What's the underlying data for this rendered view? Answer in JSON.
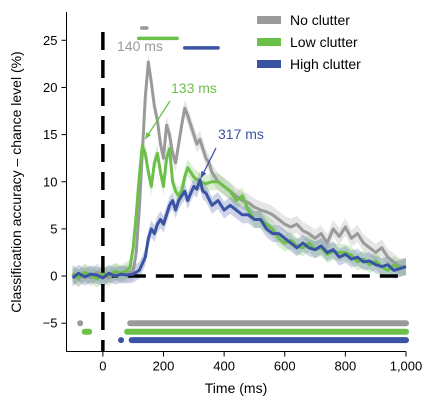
{
  "chart_data": {
    "type": "line",
    "xlabel": "Time (ms)",
    "ylabel": "Classification accuracy – chance level (%)",
    "xlim": [
      -120,
      1000
    ],
    "ylim": [
      -8,
      28
    ],
    "x_ticks": [
      0,
      200,
      400,
      600,
      800,
      1000
    ],
    "x_tick_labels": [
      "0",
      "200",
      "400",
      "600",
      "800",
      "1,000"
    ],
    "y_ticks": [
      -5,
      0,
      5,
      10,
      15,
      20,
      25
    ],
    "y_tick_labels": [
      "−5",
      "0",
      "5",
      "10",
      "15",
      "20",
      "25"
    ],
    "legend_position": "top-right",
    "colors": {
      "no_clutter": "#9a9a9a",
      "low_clutter": "#6cc04a",
      "high_clutter": "#3a53a4"
    },
    "series": [
      {
        "name": "No clutter",
        "key": "no_clutter",
        "color": "#9a9a9a",
        "x": [
          -100,
          -80,
          -60,
          -40,
          -20,
          0,
          20,
          40,
          60,
          80,
          100,
          110,
          120,
          130,
          140,
          150,
          160,
          170,
          180,
          190,
          200,
          210,
          220,
          230,
          240,
          250,
          260,
          270,
          280,
          290,
          300,
          310,
          320,
          330,
          340,
          350,
          360,
          380,
          400,
          420,
          440,
          460,
          480,
          500,
          520,
          540,
          560,
          580,
          600,
          620,
          640,
          660,
          680,
          700,
          720,
          740,
          760,
          780,
          800,
          820,
          840,
          860,
          880,
          900,
          920,
          940,
          960,
          980,
          1000
        ],
        "y": [
          0.2,
          -0.3,
          0.3,
          -0.2,
          0.4,
          0.1,
          -0.2,
          0.4,
          0.1,
          0.3,
          0.5,
          2.5,
          7,
          13,
          19,
          22.7,
          20.5,
          18,
          16.5,
          14,
          12.5,
          16,
          15,
          13,
          12,
          14,
          16,
          17.8,
          17,
          16,
          15,
          14,
          14.5,
          13.5,
          12.5,
          12,
          11,
          10,
          9.5,
          9,
          8.5,
          8,
          7.8,
          7.3,
          7,
          6.8,
          6.5,
          6,
          5.5,
          5.2,
          5.5,
          4.8,
          4.5,
          4,
          4.5,
          3.5,
          5,
          4.2,
          5.2,
          4,
          4.5,
          3.5,
          3,
          2.5,
          3,
          2,
          1.5,
          1,
          1
        ]
      },
      {
        "name": "Low clutter",
        "key": "low_clutter",
        "color": "#6cc04a",
        "x": [
          -100,
          -80,
          -60,
          -40,
          -20,
          0,
          20,
          40,
          60,
          80,
          90,
          100,
          110,
          120,
          130,
          140,
          150,
          160,
          170,
          180,
          190,
          200,
          210,
          220,
          230,
          240,
          250,
          260,
          270,
          280,
          290,
          300,
          320,
          340,
          360,
          380,
          400,
          420,
          440,
          460,
          480,
          500,
          520,
          540,
          560,
          580,
          600,
          620,
          640,
          660,
          680,
          700,
          720,
          740,
          760,
          780,
          800,
          820,
          840,
          860,
          880,
          900,
          920,
          940,
          960,
          980,
          1000
        ],
        "y": [
          0.3,
          -0.2,
          0.4,
          0.1,
          -0.3,
          0.2,
          0.1,
          0.5,
          0.3,
          0.6,
          1,
          3,
          6.5,
          10.5,
          13.8,
          13,
          11,
          9.5,
          12,
          13,
          11,
          9.5,
          12.5,
          13.5,
          10,
          9,
          8.5,
          9,
          10.5,
          11.5,
          11,
          10.5,
          10,
          9.8,
          10,
          10,
          9.5,
          9,
          8,
          8.5,
          7,
          6,
          6,
          5.5,
          5,
          4,
          3.5,
          3.8,
          3.2,
          3,
          3.5,
          2.8,
          3,
          2.3,
          2.6,
          2.5,
          2.5,
          2.2,
          1.5,
          1.8,
          1.2,
          1.6,
          1,
          0.6,
          1.2,
          0.8,
          1
        ]
      },
      {
        "name": "High clutter",
        "key": "high_clutter",
        "color": "#3a53a4",
        "x": [
          -100,
          -80,
          -60,
          -40,
          -20,
          0,
          20,
          40,
          60,
          80,
          100,
          120,
          140,
          150,
          160,
          170,
          180,
          190,
          200,
          210,
          220,
          230,
          240,
          250,
          260,
          270,
          280,
          290,
          300,
          310,
          320,
          330,
          340,
          360,
          380,
          400,
          420,
          440,
          460,
          480,
          500,
          520,
          540,
          560,
          580,
          600,
          620,
          640,
          660,
          680,
          700,
          720,
          740,
          760,
          780,
          800,
          820,
          840,
          860,
          880,
          900,
          920,
          940,
          960,
          980,
          1000
        ],
        "y": [
          -0.2,
          0.3,
          -0.1,
          0.2,
          0.1,
          -0.2,
          0.3,
          0,
          0.2,
          0.1,
          0.2,
          0.6,
          2,
          4,
          5,
          4.5,
          5.5,
          6,
          5.5,
          6.5,
          7.5,
          8,
          7,
          8,
          8.5,
          9,
          8,
          8.8,
          9.5,
          9.2,
          10.2,
          9,
          8.8,
          7.5,
          8,
          7,
          7.5,
          7,
          6.5,
          6.5,
          6,
          6,
          5,
          4.5,
          4.5,
          4,
          3.5,
          3,
          3.5,
          3,
          2.8,
          3.2,
          2.5,
          2.8,
          2,
          2.3,
          1.8,
          2,
          1.5,
          1.6,
          1.2,
          1,
          1.2,
          0.6,
          0.8,
          1
        ]
      }
    ],
    "significance_bars": [
      {
        "series": "No clutter",
        "y": -5,
        "segments": [
          [
            -75,
            -75
          ],
          [
            90,
            1000
          ]
        ]
      },
      {
        "series": "Low clutter",
        "y": -5.9,
        "segments": [
          [
            -60,
            -45
          ],
          [
            80,
            1000
          ]
        ]
      },
      {
        "series": "High clutter",
        "y": -6.8,
        "segments": [
          [
            60,
            60
          ],
          [
            95,
            1000
          ]
        ]
      }
    ],
    "top_bars": [
      {
        "series": "No clutter",
        "color": "#9a9a9a",
        "y": 26.3,
        "x": [
          128,
          145
        ]
      },
      {
        "series": "Low clutter",
        "color": "#6cc04a",
        "y": 25.2,
        "x": [
          118,
          245
        ]
      },
      {
        "series": "High clutter",
        "color": "#3a53a4",
        "y": 24.2,
        "x": [
          270,
          380
        ]
      }
    ],
    "annotations": [
      {
        "text": "140 ms",
        "series": "No clutter",
        "color": "#9a9a9a",
        "point_x": 140,
        "point_y": 23
      },
      {
        "text": "133 ms",
        "series": "Low clutter",
        "color": "#6cc04a",
        "point_x": 133,
        "point_y": 14.3
      },
      {
        "text": "317 ms",
        "series": "High clutter",
        "color": "#3a53a4",
        "point_x": 317,
        "point_y": 10.2
      }
    ],
    "reference_lines": [
      {
        "orientation": "vertical",
        "x": 0,
        "style": "dashed"
      },
      {
        "orientation": "horizontal",
        "y": 0,
        "style": "dashed"
      }
    ]
  }
}
